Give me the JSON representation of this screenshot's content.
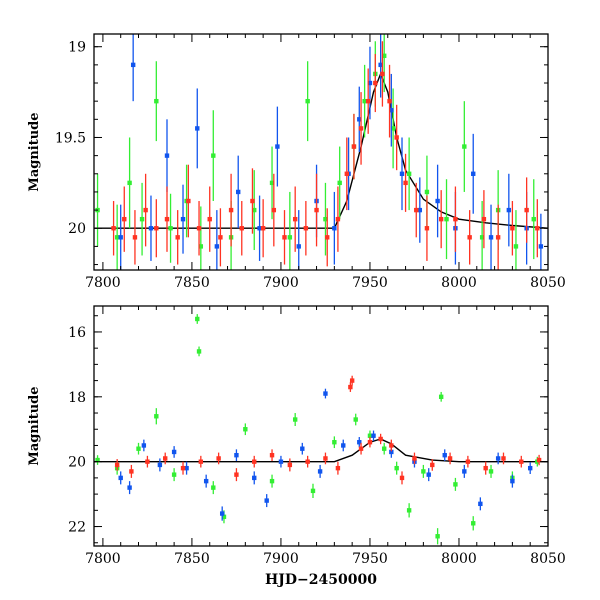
{
  "chart_data": [
    {
      "type": "scatter",
      "panel": "top",
      "title": "",
      "xlabel": "",
      "ylabel": "Magnitude",
      "xlim": [
        7795,
        8050
      ],
      "ylim": [
        20.23,
        18.93
      ],
      "y_inverted": true,
      "grid": false,
      "xticks": [
        7800,
        7850,
        7900,
        7950,
        8000,
        8050
      ],
      "xtick_labels": [
        "7800",
        "7850",
        "7900",
        "7950",
        "8000",
        "8050"
      ],
      "yticks": [
        19,
        19.5,
        20
      ],
      "ytick_labels": [
        "19",
        "19.5",
        "20"
      ],
      "model_curve": {
        "color": "#000000",
        "x": [
          7795,
          7930,
          7937,
          7945,
          7952,
          7956,
          7960,
          7965,
          7970,
          7980,
          7990,
          8000,
          8015,
          8030,
          8050
        ],
        "y": [
          20.0,
          20.0,
          19.85,
          19.55,
          19.25,
          19.15,
          19.25,
          19.5,
          19.68,
          19.84,
          19.91,
          19.95,
          19.97,
          19.985,
          20.0
        ]
      },
      "series": [
        {
          "color": "#33ee33",
          "x": [
            7797,
            7808,
            7815,
            7822,
            7830,
            7838,
            7847,
            7855,
            7862,
            7872,
            7885,
            7895,
            7905,
            7915,
            7925,
            7933,
            7941,
            7947,
            7953,
            7958,
            7963,
            7972,
            7982,
            7993,
            8003,
            8013,
            8022,
            8032,
            8042
          ],
          "y": [
            19.9,
            20.05,
            19.75,
            19.95,
            19.3,
            20.0,
            19.85,
            20.1,
            19.6,
            20.05,
            19.9,
            19.75,
            20.05,
            19.3,
            19.95,
            19.75,
            19.55,
            19.3,
            19.15,
            19.05,
            19.45,
            19.7,
            19.8,
            19.95,
            19.55,
            20.05,
            19.9,
            20.1,
            19.95
          ],
          "err": [
            0.2,
            0.18,
            0.25,
            0.2,
            0.22,
            0.19,
            0.2,
            0.22,
            0.25,
            0.2,
            0.22,
            0.2,
            0.25,
            0.22,
            0.2,
            0.2,
            0.18,
            0.2,
            0.18,
            0.2,
            0.22,
            0.2,
            0.2,
            0.22,
            0.25,
            0.2,
            0.22,
            0.2,
            0.22
          ]
        },
        {
          "color": "#1155ee",
          "x": [
            7810,
            7817,
            7827,
            7836,
            7845,
            7853,
            7864,
            7876,
            7888,
            7898,
            7910,
            7920,
            7930,
            7938,
            7944,
            7950,
            7956,
            7962,
            7968,
            7978,
            7988,
            7998,
            8008,
            8018,
            8028,
            8038,
            8046
          ],
          "y": [
            20.05,
            19.1,
            20.0,
            19.6,
            19.95,
            19.45,
            20.1,
            19.8,
            20.0,
            19.55,
            20.1,
            19.85,
            20.0,
            19.7,
            19.4,
            19.2,
            19.1,
            19.35,
            19.7,
            19.9,
            19.85,
            20.0,
            19.7,
            20.05,
            19.9,
            20.0,
            20.1
          ],
          "err": [
            0.18,
            0.2,
            0.18,
            0.2,
            0.19,
            0.22,
            0.2,
            0.2,
            0.18,
            0.22,
            0.2,
            0.2,
            0.2,
            0.2,
            0.18,
            0.2,
            0.18,
            0.2,
            0.2,
            0.18,
            0.2,
            0.2,
            0.22,
            0.18,
            0.2,
            0.2,
            0.18
          ]
        },
        {
          "color": "#ff3322",
          "x": [
            7806,
            7812,
            7818,
            7824,
            7830,
            7836,
            7842,
            7848,
            7854,
            7860,
            7866,
            7872,
            7878,
            7884,
            7890,
            7896,
            7902,
            7908,
            7914,
            7920,
            7926,
            7932,
            7937,
            7941,
            7945,
            7949,
            7953,
            7957,
            7961,
            7965,
            7970,
            7976,
            7982,
            7990,
            7998,
            8006,
            8014,
            8022,
            8030,
            8038,
            8044
          ],
          "y": [
            20.0,
            19.95,
            20.05,
            19.9,
            20.0,
            19.95,
            20.05,
            19.85,
            20.0,
            19.95,
            20.05,
            19.9,
            20.0,
            19.85,
            20.0,
            19.9,
            20.05,
            19.95,
            20.0,
            19.9,
            20.05,
            19.95,
            19.7,
            19.55,
            19.45,
            19.3,
            19.2,
            19.15,
            19.3,
            19.5,
            19.75,
            19.9,
            20.0,
            19.95,
            19.95,
            20.05,
            19.95,
            20.05,
            20.0,
            19.9,
            20.0
          ],
          "err": [
            0.15,
            0.18,
            0.15,
            0.2,
            0.16,
            0.18,
            0.15,
            0.2,
            0.15,
            0.18,
            0.16,
            0.2,
            0.15,
            0.18,
            0.16,
            0.2,
            0.15,
            0.18,
            0.15,
            0.2,
            0.16,
            0.18,
            0.2,
            0.18,
            0.2,
            0.18,
            0.16,
            0.18,
            0.2,
            0.18,
            0.16,
            0.15,
            0.18,
            0.16,
            0.18,
            0.15,
            0.16,
            0.18,
            0.15,
            0.18,
            0.16
          ]
        }
      ]
    },
    {
      "type": "scatter",
      "panel": "bottom",
      "title": "",
      "xlabel": "HJD−2450000",
      "ylabel": "Magnitude",
      "xlim": [
        7795,
        8050
      ],
      "ylim": [
        22.6,
        15.2
      ],
      "y_inverted": true,
      "grid": false,
      "xticks": [
        7800,
        7850,
        7900,
        7950,
        8000,
        8050
      ],
      "xtick_labels": [
        "7800",
        "7850",
        "7900",
        "7950",
        "8000",
        "8050"
      ],
      "yticks": [
        16,
        18,
        20,
        22
      ],
      "ytick_labels": [
        "16",
        "18",
        "20",
        "22"
      ],
      "model_curve": {
        "color": "#000000",
        "x": [
          7795,
          7930,
          7940,
          7950,
          7956,
          7962,
          7970,
          7985,
          8000,
          8050
        ],
        "y": [
          20.0,
          20.0,
          19.8,
          19.4,
          19.3,
          19.45,
          19.8,
          19.95,
          20.0,
          20.0
        ]
      },
      "series": [
        {
          "color": "#33ee33",
          "x": [
            7797,
            7808,
            7820,
            7830,
            7840,
            7853,
            7854,
            7862,
            7868,
            7880,
            7895,
            7908,
            7918,
            7930,
            7942,
            7950,
            7958,
            7965,
            7972,
            7980,
            7988,
            7990,
            7998,
            8008,
            8018,
            8030,
            8044
          ],
          "y": [
            19.95,
            20.2,
            19.6,
            18.6,
            20.4,
            15.6,
            16.6,
            20.8,
            21.7,
            19.0,
            20.6,
            18.7,
            20.9,
            19.4,
            18.7,
            19.2,
            19.6,
            20.2,
            21.5,
            20.3,
            22.3,
            18.0,
            20.7,
            21.9,
            20.3,
            20.5,
            20.0
          ],
          "err": [
            0.15,
            0.2,
            0.18,
            0.25,
            0.2,
            0.15,
            0.15,
            0.2,
            0.2,
            0.18,
            0.2,
            0.2,
            0.22,
            0.18,
            0.18,
            0.16,
            0.18,
            0.2,
            0.22,
            0.2,
            0.25,
            0.15,
            0.2,
            0.22,
            0.2,
            0.2,
            0.15
          ]
        },
        {
          "color": "#1155ee",
          "x": [
            7810,
            7815,
            7823,
            7832,
            7840,
            7847,
            7858,
            7867,
            7875,
            7885,
            7892,
            7900,
            7912,
            7922,
            7925,
            7935,
            7944,
            7952,
            7962,
            7975,
            7983,
            7992,
            8003,
            8012,
            8022,
            8030,
            8040
          ],
          "y": [
            20.5,
            20.8,
            19.5,
            20.1,
            19.7,
            20.2,
            20.6,
            21.6,
            19.8,
            20.5,
            21.2,
            20.0,
            19.6,
            20.3,
            17.9,
            19.5,
            19.4,
            19.2,
            19.7,
            20.0,
            20.4,
            19.8,
            20.3,
            21.3,
            19.9,
            20.6,
            20.2
          ],
          "err": [
            0.2,
            0.2,
            0.18,
            0.2,
            0.18,
            0.2,
            0.2,
            0.22,
            0.18,
            0.2,
            0.2,
            0.18,
            0.18,
            0.2,
            0.15,
            0.18,
            0.16,
            0.16,
            0.18,
            0.18,
            0.2,
            0.18,
            0.2,
            0.2,
            0.18,
            0.2,
            0.18
          ]
        },
        {
          "color": "#ff3322",
          "x": [
            7808,
            7816,
            7825,
            7835,
            7845,
            7855,
            7865,
            7875,
            7885,
            7895,
            7905,
            7915,
            7925,
            7932,
            7939,
            7940,
            7945,
            7950,
            7956,
            7962,
            7968,
            7975,
            7985,
            7995,
            8005,
            8015,
            8025,
            8035,
            8045
          ],
          "y": [
            20.1,
            20.3,
            20.0,
            19.9,
            20.2,
            20.0,
            19.9,
            20.4,
            20.0,
            19.8,
            20.1,
            20.0,
            19.9,
            20.2,
            17.7,
            17.5,
            19.6,
            19.4,
            19.3,
            19.5,
            20.5,
            19.9,
            20.1,
            19.9,
            20.0,
            20.2,
            19.9,
            20.0,
            19.95
          ],
          "err": [
            0.18,
            0.2,
            0.18,
            0.18,
            0.2,
            0.18,
            0.18,
            0.2,
            0.18,
            0.18,
            0.2,
            0.18,
            0.18,
            0.2,
            0.15,
            0.15,
            0.18,
            0.16,
            0.16,
            0.18,
            0.2,
            0.18,
            0.18,
            0.18,
            0.18,
            0.2,
            0.18,
            0.18,
            0.16
          ]
        }
      ]
    }
  ]
}
